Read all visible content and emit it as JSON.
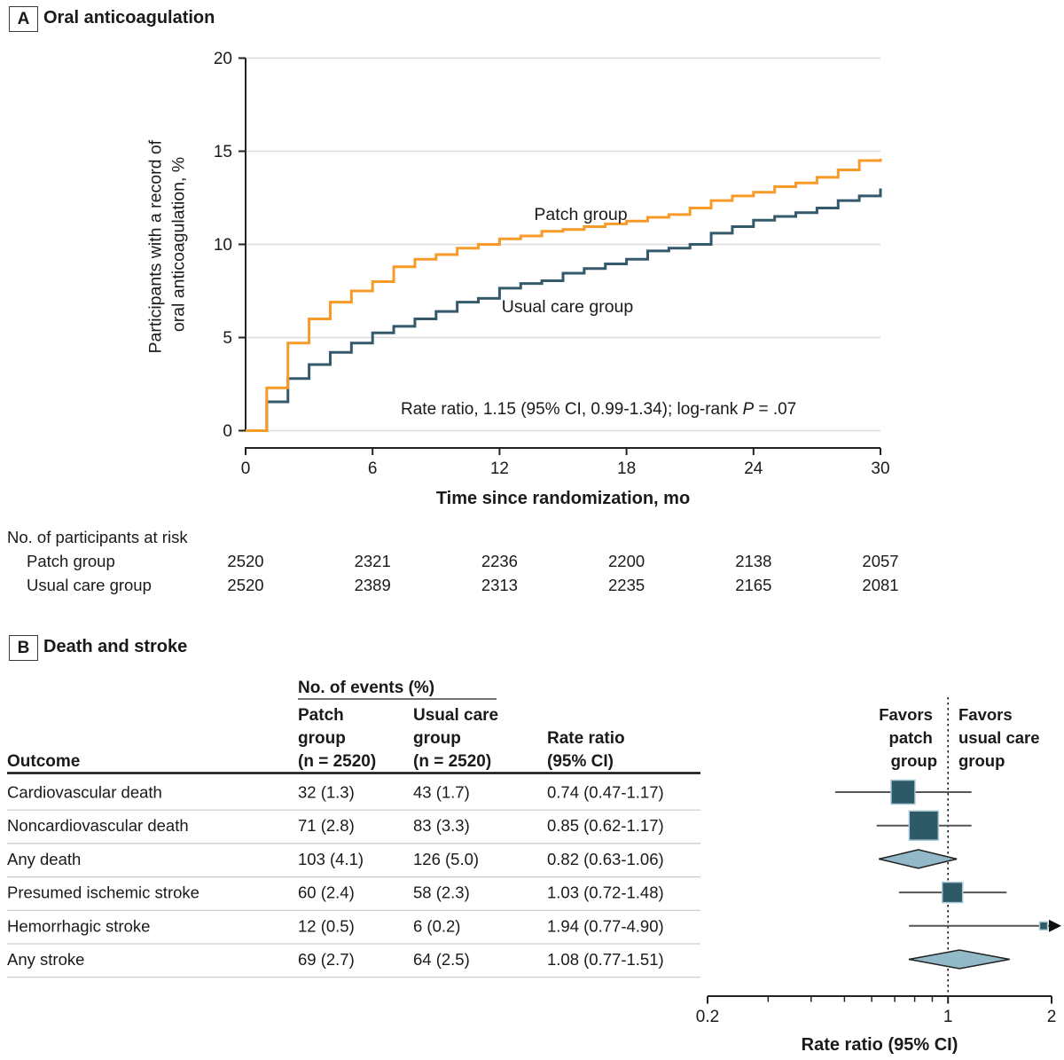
{
  "panel_a": {
    "label": "A",
    "title": "Oral anticoagulation",
    "annotation": {
      "pre": "Rate ratio, 1.15 (95% CI, 0.99-1.34); log-rank ",
      "p": "P",
      "post": " = .07"
    }
  },
  "panel_b": {
    "label": "B",
    "title": "Death and stroke",
    "table": {
      "events_header": "No. of events (%)",
      "col_outcome": "Outcome",
      "col_patch_lines": [
        "Patch",
        "group",
        "(n = 2520)"
      ],
      "col_usual_lines": [
        "Usual care",
        "group",
        "(n = 2520)"
      ],
      "col_ratio_lines": [
        "Rate ratio",
        "(95% CI)"
      ]
    }
  },
  "risk_table": {
    "title": "No. of participants at risk",
    "rows": [
      {
        "label": "Patch group",
        "values": [
          "2520",
          "2321",
          "2236",
          "2200",
          "2138",
          "2057"
        ]
      },
      {
        "label": "Usual care group",
        "values": [
          "2520",
          "2389",
          "2313",
          "2235",
          "2165",
          "2081"
        ]
      }
    ]
  },
  "colors": {
    "patch": "#F79A28",
    "usual": "#33596B",
    "square_fill": "#2E5A68",
    "square_stroke": "#A9CBD6",
    "diamond_fill": "#92B9C8",
    "ci_line": "#555555",
    "grid": "#DCDCDC",
    "axis": "#222222"
  },
  "chart_data": [
    {
      "type": "line",
      "subtype": "kaplan-meier-step",
      "title": "Oral anticoagulation",
      "xlabel": "Time since randomization, mo",
      "ylabel": "Participants with a record of oral anticoagulation, %",
      "ylabel_lines": [
        "Participants with a record of",
        "oral anticoagulation, %"
      ],
      "xlim": [
        0,
        30
      ],
      "ylim": [
        0,
        20
      ],
      "xticks": [
        0,
        6,
        12,
        18,
        24,
        30
      ],
      "yticks": [
        0,
        5,
        10,
        15,
        20
      ],
      "grid": "horizontal",
      "annotation": "Rate ratio, 1.15 (95% CI, 0.99-1.34); log-rank P = .07",
      "x_months": [
        0,
        1,
        2,
        3,
        4,
        5,
        6,
        7,
        8,
        9,
        10,
        11,
        12,
        13,
        14,
        15,
        16,
        17,
        18,
        19,
        20,
        21,
        22,
        23,
        24,
        25,
        26,
        27,
        28,
        29,
        30
      ],
      "series": [
        {
          "name": "Patch group",
          "color": "#F79A28",
          "values": [
            0,
            2.3,
            4.7,
            6.0,
            6.9,
            7.5,
            8.0,
            8.8,
            9.2,
            9.45,
            9.8,
            10.0,
            10.3,
            10.45,
            10.7,
            10.8,
            10.95,
            11.1,
            11.25,
            11.45,
            11.6,
            11.95,
            12.35,
            12.6,
            12.8,
            13.1,
            13.3,
            13.6,
            14.0,
            14.5,
            14.6
          ]
        },
        {
          "name": "Usual care group",
          "color": "#33596B",
          "values": [
            0,
            1.55,
            2.8,
            3.55,
            4.2,
            4.7,
            5.25,
            5.6,
            6.0,
            6.4,
            6.9,
            7.1,
            7.65,
            7.9,
            8.05,
            8.45,
            8.7,
            8.95,
            9.2,
            9.65,
            9.8,
            10.0,
            10.6,
            10.95,
            11.3,
            11.5,
            11.7,
            11.95,
            12.35,
            12.6,
            13.0
          ]
        }
      ]
    },
    {
      "type": "forest",
      "xlabel": "Rate ratio (95% CI)",
      "scale": "log",
      "xlim": [
        0.2,
        2
      ],
      "xticks": [
        "0.2",
        "1",
        "2"
      ],
      "minor_ticks": [
        0.3,
        0.4,
        0.5,
        0.6,
        0.7,
        0.8,
        0.9
      ],
      "reference_line": 1,
      "favors_left": [
        "Favors",
        "patch",
        "group"
      ],
      "favors_right": [
        "Favors",
        "usual care",
        "group"
      ],
      "rows": [
        {
          "outcome": "Cardiovascular death",
          "patch": "32 (1.3)",
          "usual": "43 (1.7)",
          "ratio": "0.74 (0.47-1.17)",
          "rr": 0.74,
          "lo": 0.47,
          "hi": 1.17,
          "marker": "square",
          "weight": 27
        },
        {
          "outcome": "Noncardiovascular death",
          "patch": "71 (2.8)",
          "usual": "83 (3.3)",
          "ratio": "0.85 (0.62-1.17)",
          "rr": 0.85,
          "lo": 0.62,
          "hi": 1.17,
          "marker": "square",
          "weight": 33
        },
        {
          "outcome": "Any death",
          "patch": "103 (4.1)",
          "usual": "126 (5.0)",
          "ratio": "0.82 (0.63-1.06)",
          "rr": 0.82,
          "lo": 0.63,
          "hi": 1.06,
          "marker": "diamond"
        },
        {
          "outcome": "Presumed ischemic stroke",
          "patch": "60 (2.4)",
          "usual": "58 (2.3)",
          "ratio": "1.03 (0.72-1.48)",
          "rr": 1.03,
          "lo": 0.72,
          "hi": 1.48,
          "marker": "square",
          "weight": 23
        },
        {
          "outcome": "Hemorrhagic stroke",
          "patch": "12 (0.5)",
          "usual": "6 (0.2)",
          "ratio": "1.94 (0.77-4.90)",
          "rr": 1.94,
          "lo": 0.77,
          "hi": 4.9,
          "marker": "square",
          "weight": 9,
          "arrow_right": true
        },
        {
          "outcome": "Any stroke",
          "patch": "69 (2.7)",
          "usual": "64 (2.5)",
          "ratio": "1.08 (0.77-1.51)",
          "rr": 1.08,
          "lo": 0.77,
          "hi": 1.51,
          "marker": "diamond"
        }
      ]
    }
  ]
}
